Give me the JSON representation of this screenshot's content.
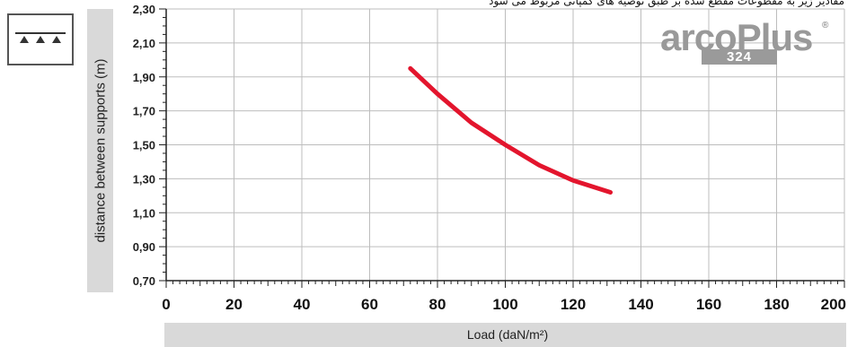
{
  "header": {
    "note": "مقادیر زیر به مقطوعات مقطع شده بر طبق توصیه های کمپانی مربوط می شود"
  },
  "logo": {
    "name": "arcoPlus",
    "registered": "®",
    "model": "324"
  },
  "icon": {
    "name": "support-triangles-icon"
  },
  "chart_data": {
    "type": "line",
    "title": "",
    "xlabel": "Load (daN/m²)",
    "ylabel": "distance between supports (m)",
    "xlim": [
      0,
      200
    ],
    "ylim": [
      0.7,
      2.3
    ],
    "x_ticks": [
      "0",
      "20",
      "40",
      "60",
      "80",
      "100",
      "120",
      "140",
      "160",
      "180",
      "200"
    ],
    "y_ticks": [
      "0,70",
      "0,90",
      "1,10",
      "1,30",
      "1,50",
      "1,70",
      "1,90",
      "2,10",
      "2,30"
    ],
    "grid": true,
    "series": [
      {
        "color": "#e3152d",
        "points": [
          {
            "x": 72,
            "y": 1.95
          },
          {
            "x": 80,
            "y": 1.8
          },
          {
            "x": 90,
            "y": 1.63
          },
          {
            "x": 100,
            "y": 1.5
          },
          {
            "x": 110,
            "y": 1.38
          },
          {
            "x": 120,
            "y": 1.29
          },
          {
            "x": 131,
            "y": 1.22
          }
        ]
      }
    ]
  }
}
